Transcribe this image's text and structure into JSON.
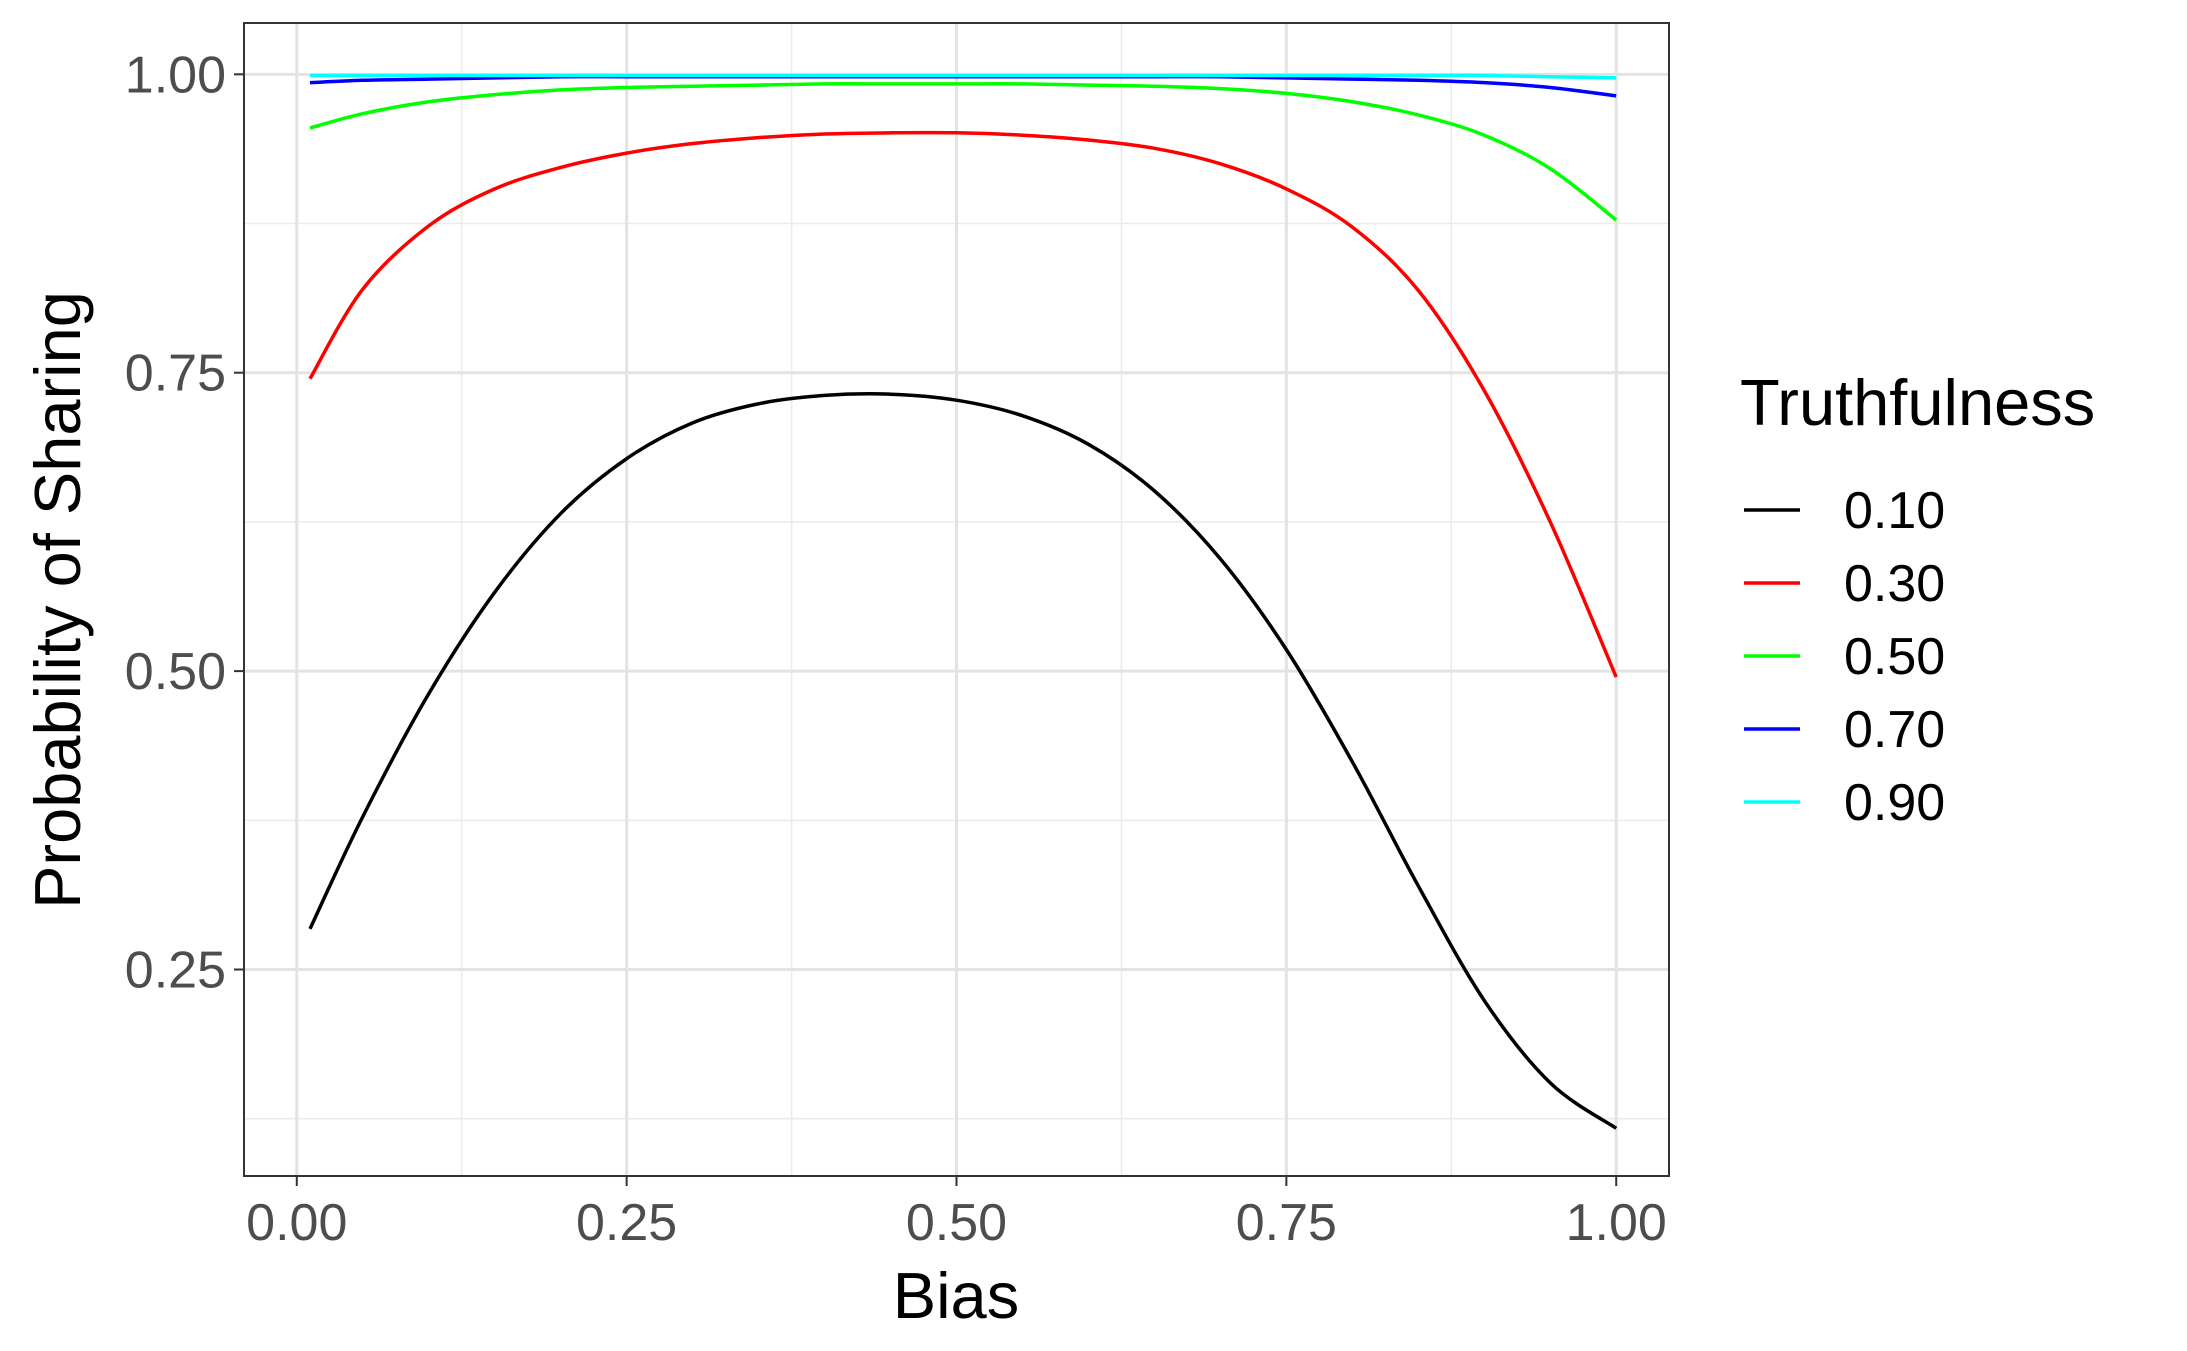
{
  "chart_data": {
    "type": "line",
    "title": "",
    "xlabel": "Bias",
    "ylabel": "Probability of Sharing",
    "xlim": [
      -0.04,
      1.04
    ],
    "ylim": [
      0.077,
      1.043
    ],
    "x_ticks": [
      0.0,
      0.25,
      0.5,
      0.75,
      1.0
    ],
    "x_tick_labels": [
      "0.00",
      "0.25",
      "0.50",
      "0.75",
      "1.00"
    ],
    "y_ticks": [
      0.25,
      0.5,
      0.75,
      1.0
    ],
    "y_tick_labels": [
      "0.25",
      "0.50",
      "0.75",
      "1.00"
    ],
    "grid": true,
    "legend": {
      "title": "Truthfulness",
      "placement": "right"
    },
    "x": [
      0.01,
      0.05,
      0.1,
      0.15,
      0.2,
      0.25,
      0.3,
      0.35,
      0.4,
      0.45,
      0.5,
      0.55,
      0.6,
      0.65,
      0.7,
      0.75,
      0.8,
      0.85,
      0.9,
      0.95,
      1.0
    ],
    "series": [
      {
        "name": "0.10",
        "color": "#000000",
        "values": [
          0.284,
          0.378,
          0.481,
          0.566,
          0.632,
          0.678,
          0.708,
          0.724,
          0.731,
          0.732,
          0.727,
          0.714,
          0.69,
          0.651,
          0.594,
          0.518,
          0.424,
          0.32,
          0.224,
          0.155,
          0.117
        ]
      },
      {
        "name": "0.30",
        "color": "#ff0000",
        "values": [
          0.745,
          0.82,
          0.873,
          0.904,
          0.922,
          0.934,
          0.942,
          0.947,
          0.95,
          0.951,
          0.951,
          0.949,
          0.945,
          0.938,
          0.925,
          0.904,
          0.872,
          0.819,
          0.735,
          0.625,
          0.495
        ]
      },
      {
        "name": "0.50",
        "color": "#00ff00",
        "values": [
          0.955,
          0.967,
          0.977,
          0.983,
          0.987,
          0.989,
          0.99,
          0.991,
          0.992,
          0.992,
          0.992,
          0.992,
          0.991,
          0.99,
          0.988,
          0.984,
          0.977,
          0.966,
          0.949,
          0.921,
          0.878
        ]
      },
      {
        "name": "0.70",
        "color": "#0000ff",
        "values": [
          0.993,
          0.995,
          0.996,
          0.997,
          0.998,
          0.998,
          0.998,
          0.998,
          0.998,
          0.998,
          0.998,
          0.998,
          0.998,
          0.998,
          0.998,
          0.997,
          0.996,
          0.995,
          0.993,
          0.989,
          0.982
        ]
      },
      {
        "name": "0.90",
        "color": "#00ffff",
        "values": [
          0.999,
          0.999,
          0.999,
          0.999,
          0.999,
          0.999,
          0.999,
          0.999,
          0.999,
          0.999,
          0.999,
          0.999,
          0.999,
          0.999,
          0.999,
          0.999,
          0.999,
          0.999,
          0.999,
          0.998,
          0.997
        ]
      }
    ]
  }
}
